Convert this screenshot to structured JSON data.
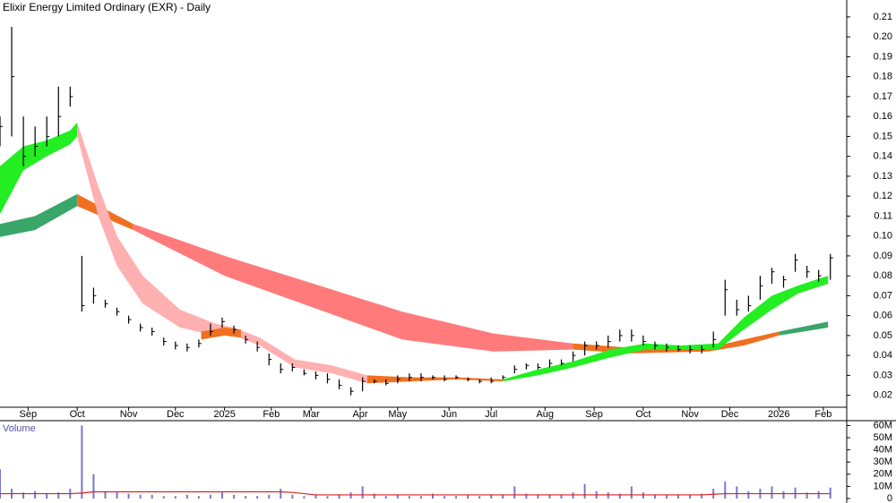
{
  "chart_data": {
    "type": "ohlc",
    "title": "Elixir Energy Limited Ordinary (EXR) - Daily",
    "volume_label": "Volume",
    "xlim": [
      0,
      362
    ],
    "xticks": [
      {
        "value": 12,
        "label": "Sep"
      },
      {
        "value": 33,
        "label": "Oct"
      },
      {
        "value": 55,
        "label": "Nov"
      },
      {
        "value": 75,
        "label": "Dec"
      },
      {
        "value": 96,
        "label": "2025"
      },
      {
        "value": 116,
        "label": "Feb"
      },
      {
        "value": 133,
        "label": "Mar"
      },
      {
        "value": 154,
        "label": "Apr"
      },
      {
        "value": 170,
        "label": "May"
      },
      {
        "value": 192,
        "label": "Jun"
      },
      {
        "value": 210,
        "label": "Jul"
      },
      {
        "value": 233,
        "label": "Aug"
      },
      {
        "value": 254,
        "label": "Sep"
      },
      {
        "value": 275,
        "label": "Oct"
      },
      {
        "value": 295,
        "label": "Nov"
      },
      {
        "value": 312,
        "label": "Dec"
      },
      {
        "value": 333,
        "label": "2026"
      },
      {
        "value": 352,
        "label": "Feb"
      }
    ],
    "ylim": [
      0.014,
      0.2185
    ],
    "yticks": [
      0.02,
      0.03,
      0.04,
      0.05,
      0.06,
      0.07,
      0.08,
      0.09,
      {
        "value": 0.1,
        "label": "0.10"
      },
      0.11,
      0.12,
      0.13,
      0.14,
      0.15,
      0.16,
      0.17,
      0.18,
      0.19,
      {
        "value": 0.2,
        "label": "0.20"
      },
      0.21
    ],
    "bar_color": "#000000",
    "x": [
      0,
      5,
      10,
      15,
      20,
      25,
      30,
      35,
      40,
      45,
      50,
      55,
      60,
      65,
      70,
      75,
      80,
      85,
      90,
      95,
      100,
      105,
      110,
      115,
      120,
      125,
      130,
      135,
      140,
      145,
      150,
      155,
      160,
      165,
      170,
      175,
      180,
      185,
      190,
      195,
      200,
      205,
      210,
      215,
      220,
      225,
      230,
      235,
      240,
      245,
      250,
      255,
      260,
      265,
      270,
      275,
      280,
      285,
      290,
      295,
      300,
      305,
      310,
      315,
      320,
      325,
      330,
      335,
      340,
      345,
      350,
      355
    ],
    "high": [
      0.16,
      0.205,
      0.16,
      0.155,
      0.16,
      0.175,
      0.175,
      0.09,
      0.074,
      0.068,
      0.064,
      0.06,
      0.056,
      0.054,
      0.049,
      0.047,
      0.046,
      0.048,
      0.056,
      0.059,
      0.055,
      0.05,
      0.047,
      0.041,
      0.036,
      0.036,
      0.033,
      0.032,
      0.031,
      0.028,
      0.024,
      0.029,
      0.028,
      0.028,
      0.03,
      0.031,
      0.031,
      0.03,
      0.03,
      0.03,
      0.029,
      0.028,
      0.029,
      0.03,
      0.035,
      0.036,
      0.036,
      0.038,
      0.038,
      0.042,
      0.047,
      0.047,
      0.05,
      0.053,
      0.053,
      0.05,
      0.047,
      0.046,
      0.045,
      0.045,
      0.045,
      0.052,
      0.078,
      0.068,
      0.07,
      0.08,
      0.084,
      0.08,
      0.091,
      0.085,
      0.083,
      0.091
    ],
    "low": [
      0.145,
      0.15,
      0.135,
      0.14,
      0.145,
      0.15,
      0.165,
      0.062,
      0.066,
      0.064,
      0.06,
      0.056,
      0.052,
      0.05,
      0.045,
      0.043,
      0.042,
      0.044,
      0.05,
      0.054,
      0.051,
      0.046,
      0.042,
      0.035,
      0.031,
      0.032,
      0.03,
      0.028,
      0.026,
      0.023,
      0.02,
      0.022,
      0.026,
      0.025,
      0.026,
      0.027,
      0.027,
      0.028,
      0.027,
      0.028,
      0.027,
      0.026,
      0.026,
      0.028,
      0.031,
      0.033,
      0.033,
      0.034,
      0.035,
      0.037,
      0.04,
      0.043,
      0.044,
      0.047,
      0.047,
      0.045,
      0.043,
      0.042,
      0.042,
      0.041,
      0.041,
      0.044,
      0.06,
      0.06,
      0.062,
      0.068,
      0.076,
      0.074,
      0.082,
      0.079,
      0.077,
      0.078
    ],
    "close": [
      0.155,
      0.18,
      0.14,
      0.145,
      0.15,
      0.16,
      0.17,
      0.065,
      0.07,
      0.066,
      0.062,
      0.058,
      0.054,
      0.052,
      0.047,
      0.045,
      0.044,
      0.046,
      0.052,
      0.057,
      0.053,
      0.048,
      0.044,
      0.038,
      0.033,
      0.034,
      0.031,
      0.03,
      0.028,
      0.025,
      0.022,
      0.027,
      0.027,
      0.026,
      0.028,
      0.029,
      0.029,
      0.029,
      0.028,
      0.029,
      0.028,
      0.027,
      0.027,
      0.029,
      0.033,
      0.035,
      0.034,
      0.036,
      0.036,
      0.04,
      0.045,
      0.045,
      0.047,
      0.05,
      0.05,
      0.047,
      0.045,
      0.044,
      0.043,
      0.043,
      0.043,
      0.048,
      0.073,
      0.063,
      0.065,
      0.075,
      0.082,
      0.078,
      0.088,
      0.082,
      0.08,
      0.089
    ],
    "bands": [
      {
        "color": "#3aa66a",
        "x": [
          0,
          15,
          33
        ],
        "upper": [
          0.106,
          0.11,
          0.121
        ],
        "lower": [
          0.0995,
          0.103,
          0.115
        ]
      },
      {
        "color": "#f07020",
        "x": [
          33,
          57
        ],
        "upper": [
          0.121,
          0.106
        ],
        "lower": [
          0.115,
          0.103
        ]
      },
      {
        "color": "#ff7b7b",
        "x": [
          57,
          96,
          134,
          172,
          211,
          245
        ],
        "upper": [
          0.106,
          0.09,
          0.076,
          0.062,
          0.051,
          0.046
        ],
        "lower": [
          0.103,
          0.08,
          0.064,
          0.048,
          0.042,
          0.043
        ]
      },
      {
        "color": "#f07020",
        "x": [
          245,
          268,
          303,
          318,
          333
        ],
        "upper": [
          0.046,
          0.044,
          0.044,
          0.048,
          0.052
        ],
        "lower": [
          0.043,
          0.041,
          0.042,
          0.045,
          0.05
        ]
      },
      {
        "color": "#3aa66a",
        "x": [
          333,
          354
        ],
        "upper": [
          0.052,
          0.057
        ],
        "lower": [
          0.05,
          0.054
        ]
      },
      {
        "color": "#22ee22",
        "x": [
          0,
          10,
          20,
          30,
          33
        ],
        "upper": [
          0.135,
          0.145,
          0.148,
          0.153,
          0.157
        ],
        "lower": [
          0.111,
          0.133,
          0.14,
          0.146,
          0.15
        ]
      },
      {
        "color": "#ffb0b0",
        "x": [
          33,
          42,
          50,
          61,
          77,
          92,
          100,
          111,
          126,
          142,
          157
        ],
        "upper": [
          0.157,
          0.125,
          0.1,
          0.08,
          0.063,
          0.056,
          0.054,
          0.049,
          0.038,
          0.035,
          0.03
        ],
        "lower": [
          0.15,
          0.11,
          0.085,
          0.066,
          0.054,
          0.05,
          0.05,
          0.045,
          0.034,
          0.031,
          0.026
        ]
      },
      {
        "color": "#f07020",
        "x": [
          86,
          96,
          103
        ],
        "upper": [
          0.052,
          0.054,
          0.053
        ],
        "lower": [
          0.048,
          0.05,
          0.049
        ]
      },
      {
        "color": "#f07020",
        "x": [
          157,
          176,
          195,
          215
        ],
        "upper": [
          0.03,
          0.029,
          0.029,
          0.028
        ],
        "lower": [
          0.026,
          0.027,
          0.028,
          0.027
        ]
      },
      {
        "color": "#22ee22",
        "x": [
          215,
          230,
          245,
          261,
          276,
          291,
          307,
          318,
          330,
          341,
          354
        ],
        "upper": [
          0.028,
          0.033,
          0.037,
          0.043,
          0.046,
          0.045,
          0.046,
          0.059,
          0.07,
          0.075,
          0.08
        ],
        "lower": [
          0.027,
          0.03,
          0.034,
          0.039,
          0.043,
          0.043,
          0.043,
          0.053,
          0.063,
          0.071,
          0.076
        ]
      }
    ],
    "volume": [
      24000000,
      8000000,
      5000000,
      6000000,
      4000000,
      5000000,
      8000000,
      60000000,
      20000000,
      6000000,
      5000000,
      4000000,
      3000000,
      3000000,
      2000000,
      2000000,
      3000000,
      2000000,
      3000000,
      5000000,
      3000000,
      2000000,
      2000000,
      3000000,
      8000000,
      3000000,
      2000000,
      3000000,
      2000000,
      3000000,
      5000000,
      10000000,
      4000000,
      2000000,
      3000000,
      2000000,
      2000000,
      4000000,
      2000000,
      2000000,
      3000000,
      2000000,
      3000000,
      3000000,
      10000000,
      4000000,
      3000000,
      3000000,
      3000000,
      5000000,
      12000000,
      6000000,
      5000000,
      4000000,
      10000000,
      5000000,
      3000000,
      3000000,
      3000000,
      3000000,
      4000000,
      8000000,
      14000000,
      10000000,
      6000000,
      8000000,
      10000000,
      6000000,
      9000000,
      5000000,
      6000000,
      9000000
    ],
    "volume_color": "#7777cc",
    "volume_avg": [
      4000000,
      4000000,
      4000000,
      4000000,
      4000000,
      4000000,
      4000000,
      4500000,
      5500000,
      5500000,
      5500000,
      5500000,
      5500000,
      5500000,
      5500000,
      5500000,
      5500000,
      5500000,
      5500000,
      5500000,
      5500000,
      5500000,
      5500000,
      5500000,
      5500000,
      5000000,
      4000000,
      3000000,
      3000000,
      3000000,
      3000000,
      3000000,
      3000000,
      3000000,
      3000000,
      3000000,
      3000000,
      3000000,
      3000000,
      3000000,
      3000000,
      3000000,
      3000000,
      3000000,
      3000000,
      3000000,
      3000000,
      3000000,
      3000000,
      3000000,
      3000000,
      3000000,
      3000000,
      3000000,
      3000000,
      3000000,
      3000000,
      3000000,
      3000000,
      3000000,
      3000000,
      3500000,
      4000000,
      4000000,
      4000000,
      4000000,
      4000000,
      4000000,
      4000000,
      4000000,
      4000000,
      4000000
    ],
    "volume_avg_color": "#dd2222",
    "volume_ylim": [
      0,
      64000000
    ],
    "volume_yticks": [
      {
        "value": 0,
        "label": "0"
      },
      {
        "value": 10000000,
        "label": "10M"
      },
      {
        "value": 20000000,
        "label": "20M"
      },
      {
        "value": 30000000,
        "label": "30M"
      },
      {
        "value": 40000000,
        "label": "40M"
      },
      {
        "value": 50000000,
        "label": "50M"
      },
      {
        "value": 60000000,
        "label": "60M"
      }
    ]
  }
}
